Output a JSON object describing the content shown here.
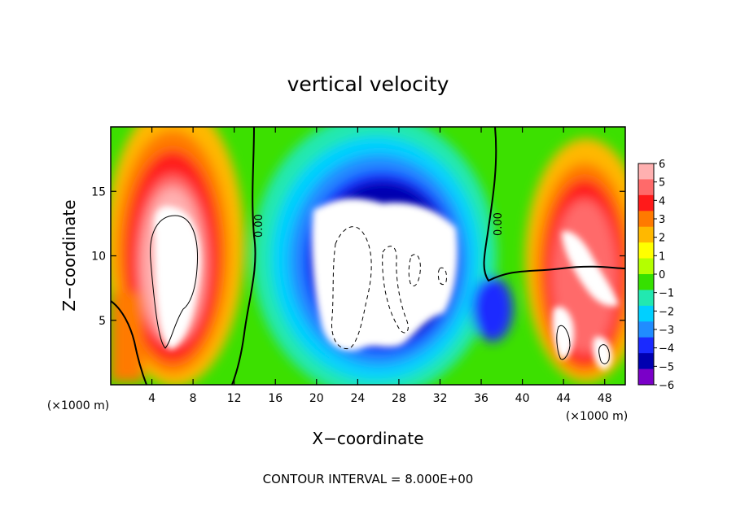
{
  "chart_data": {
    "type": "heatmap",
    "title": "vertical velocity",
    "xlabel": "X−coordinate",
    "ylabel": "Z−coordinate",
    "x_unit_label": "(×1000 m)",
    "y_unit_label": "(×1000 m)",
    "xlim": [
      0,
      50
    ],
    "ylim": [
      0,
      20
    ],
    "x_ticks": [
      "4",
      "8",
      "12",
      "16",
      "20",
      "24",
      "28",
      "32",
      "36",
      "40",
      "44",
      "48"
    ],
    "y_ticks": [
      "5",
      "10",
      "15"
    ],
    "colorbar_min": -6,
    "colorbar_max": 6,
    "colorbar_ticks": [
      "6",
      "5",
      "4",
      "3",
      "2",
      "1",
      "0",
      "−1",
      "−2",
      "−3",
      "−4",
      "−5",
      "−6"
    ],
    "colorbar_colors": [
      "#ffb0b0",
      "#ff6a6a",
      "#ff1a1a",
      "#ff7a00",
      "#ffb800",
      "#ffff00",
      "#b4ff00",
      "#36e000",
      "#22e8b0",
      "#00d0ff",
      "#208cff",
      "#1a2aff",
      "#0000b0",
      "#7a00c8"
    ],
    "contour_labels": [
      "0.00",
      "0.00"
    ],
    "footer": "CONTOUR INTERVAL = 8.000E+00",
    "features": [
      {
        "name": "updraft-left",
        "x": 6.5,
        "z": 9.5,
        "sign": "positive"
      },
      {
        "name": "downdraft-center",
        "x": 25,
        "z": 9,
        "sign": "negative"
      },
      {
        "name": "updraft-right",
        "x": 46,
        "z": 8,
        "sign": "positive"
      }
    ]
  }
}
